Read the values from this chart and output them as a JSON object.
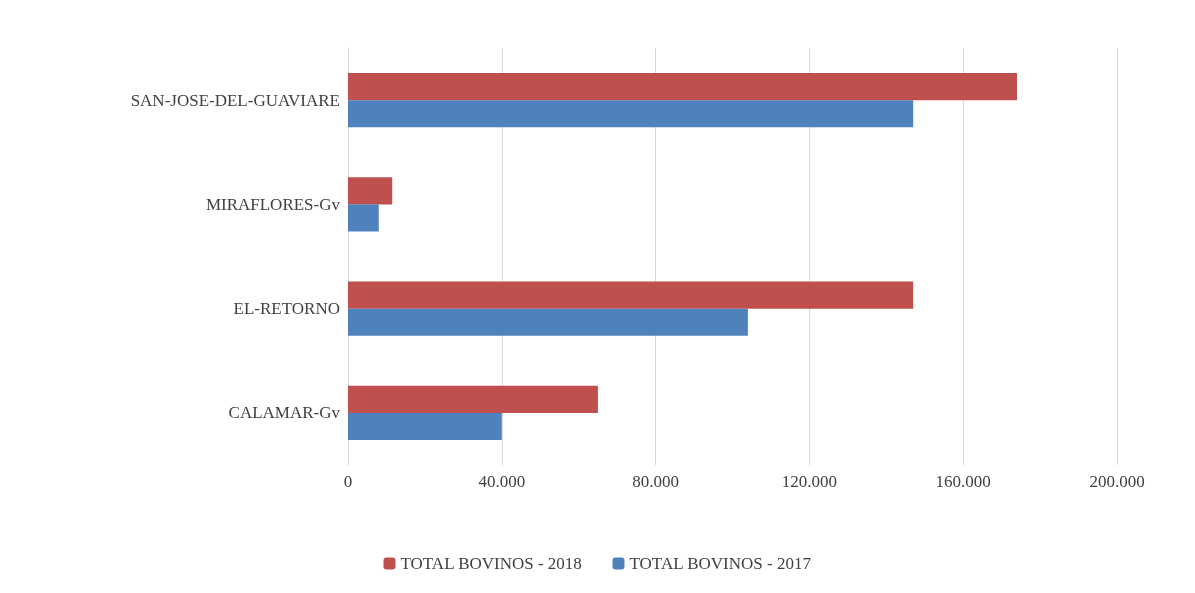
{
  "chart_data": {
    "type": "bar",
    "orientation": "horizontal",
    "categories": [
      "SAN-JOSE-DEL-GUAVIARE",
      "MIRAFLORES-Gv",
      "EL-RETORNO",
      "CALAMAR-Gv"
    ],
    "series": [
      {
        "name": "TOTAL BOVINOS - 2018",
        "color": "#c0504d",
        "values": [
          174000,
          11500,
          147000,
          65000
        ]
      },
      {
        "name": "TOTAL BOVINOS - 2017",
        "color": "#4f81bd",
        "values": [
          147000,
          8000,
          104000,
          40000
        ]
      }
    ],
    "xlim": [
      0,
      200000
    ],
    "xticks": [
      {
        "value": 0,
        "label": "0"
      },
      {
        "value": 40000,
        "label": "40.000"
      },
      {
        "value": 80000,
        "label": "80.000"
      },
      {
        "value": 120000,
        "label": "120.000"
      },
      {
        "value": 160000,
        "label": "160.000"
      },
      {
        "value": 200000,
        "label": "200.000"
      }
    ],
    "grid": "x",
    "legend": "bottom"
  }
}
